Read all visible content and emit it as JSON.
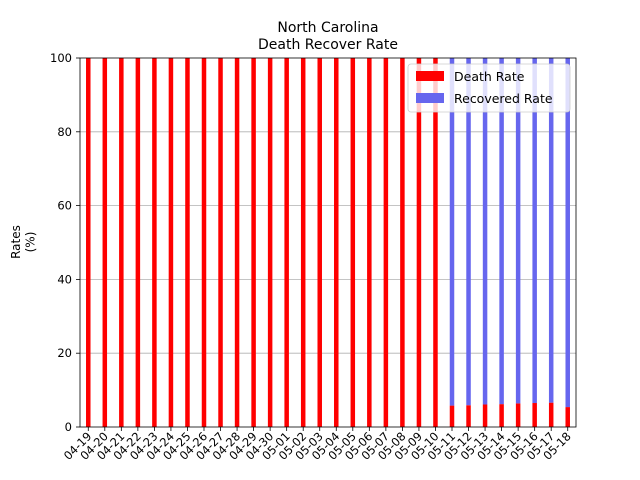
{
  "colors": {
    "death": "#ff0000",
    "recovered": "#6666ee",
    "grid": "#b0b0b0",
    "axis": "#000000"
  },
  "chart_data": {
    "type": "bar",
    "stacked": true,
    "title": "North Carolina",
    "subtitle": "Death Recover Rate",
    "xlabel": "",
    "ylabel": "Rates\n(%)",
    "ylim": [
      0,
      100
    ],
    "yticks": [
      0,
      20,
      40,
      60,
      80,
      100
    ],
    "grid": "y-major",
    "legend_position": "top-right",
    "categories": [
      "04-19",
      "04-20",
      "04-21",
      "04-22",
      "04-23",
      "04-24",
      "04-25",
      "04-26",
      "04-27",
      "04-28",
      "04-29",
      "04-30",
      "05-01",
      "05-02",
      "05-03",
      "05-04",
      "05-05",
      "05-06",
      "05-07",
      "05-08",
      "05-09",
      "05-10",
      "05-11",
      "05-12",
      "05-13",
      "05-14",
      "05-15",
      "05-16",
      "05-17",
      "05-18"
    ],
    "series": [
      {
        "name": "Death Rate",
        "color": "#ff0000",
        "values": [
          100,
          100,
          100,
          100,
          100,
          100,
          100,
          100,
          100,
          100,
          100,
          100,
          100,
          100,
          100,
          100,
          100,
          100,
          100,
          100,
          100,
          100,
          5.8,
          5.9,
          6.1,
          6.2,
          6.4,
          6.5,
          6.6,
          5.4
        ]
      },
      {
        "name": "Recovered Rate",
        "color": "#6666ee",
        "values": [
          0,
          0,
          0,
          0,
          0,
          0,
          0,
          0,
          0,
          0,
          0,
          0,
          0,
          0,
          0,
          0,
          0,
          0,
          0,
          0,
          0,
          0,
          94.2,
          94.1,
          93.9,
          93.8,
          93.6,
          93.5,
          93.4,
          94.6
        ]
      }
    ]
  }
}
